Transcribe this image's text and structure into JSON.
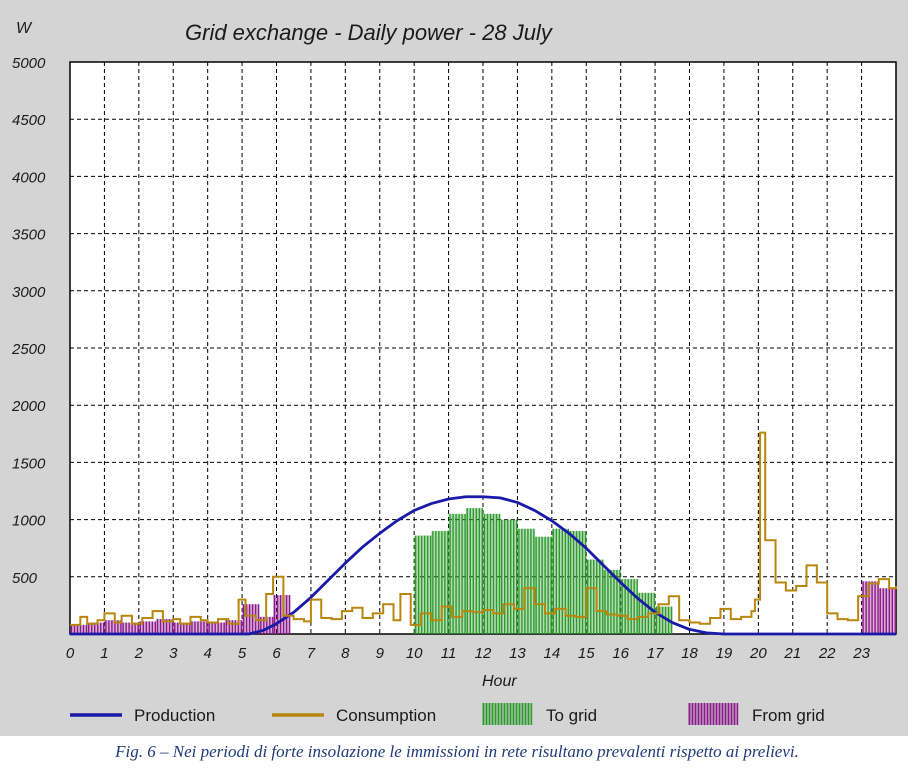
{
  "chart_data": {
    "type": "line",
    "title": "Grid exchange - Daily power - 28 July",
    "ylabel": "W",
    "xlabel": "Hour",
    "ylim": [
      0,
      5000
    ],
    "xlim": [
      0,
      24
    ],
    "y_ticks": [
      5000,
      4500,
      4000,
      3500,
      3000,
      2500,
      2000,
      1500,
      1000,
      500
    ],
    "x_ticks": [
      0,
      1,
      2,
      3,
      4,
      5,
      6,
      7,
      8,
      9,
      10,
      11,
      12,
      13,
      14,
      15,
      16,
      17,
      18,
      19,
      20,
      21,
      22,
      23
    ],
    "grid": true,
    "legend_position": "bottom",
    "colors": {
      "production": "#1a1aa8",
      "consumption": "#b8860b",
      "to_grid": "#2e9a2e",
      "from_grid": "#8b1a8b",
      "plot_bg": "#ffffff",
      "panel_bg": "#d4d4d4"
    },
    "series": [
      {
        "name": "Production",
        "style": "line",
        "x": [
          0,
          5.2,
          5.6,
          6,
          6.5,
          7,
          7.5,
          8,
          8.5,
          9,
          9.5,
          10,
          10.5,
          11,
          11.5,
          12,
          12.5,
          13,
          13.5,
          14,
          14.5,
          15,
          15.5,
          16,
          16.5,
          17,
          17.5,
          18,
          18.5,
          19,
          24
        ],
        "y": [
          0,
          0,
          30,
          90,
          190,
          320,
          470,
          620,
          760,
          880,
          990,
          1080,
          1140,
          1180,
          1200,
          1200,
          1190,
          1150,
          1080,
          990,
          880,
          750,
          600,
          450,
          310,
          190,
          100,
          40,
          10,
          0,
          0
        ]
      },
      {
        "name": "Consumption",
        "style": "step",
        "x": [
          0,
          0.3,
          0.5,
          0.8,
          1,
          1.3,
          1.5,
          1.8,
          2.1,
          2.4,
          2.7,
          3,
          3.2,
          3.5,
          3.8,
          4,
          4.3,
          4.6,
          4.9,
          5.1,
          5.4,
          5.7,
          5.9,
          6.2,
          6.5,
          6.8,
          7,
          7.3,
          7.6,
          7.9,
          8.2,
          8.5,
          8.8,
          9.1,
          9.4,
          9.6,
          9.9,
          10.2,
          10.5,
          10.8,
          11.1,
          11.4,
          11.7,
          12,
          12.3,
          12.6,
          12.9,
          13.2,
          13.5,
          13.8,
          14.1,
          14.4,
          14.7,
          15,
          15.3,
          15.6,
          15.9,
          16.2,
          16.5,
          16.8,
          17.1,
          17.4,
          17.7,
          18,
          18.3,
          18.6,
          18.9,
          19.2,
          19.5,
          19.8,
          19.9,
          20.05,
          20.2,
          20.5,
          20.8,
          21.1,
          21.4,
          21.7,
          22,
          22.3,
          22.6,
          22.9,
          23.2,
          23.5,
          23.8,
          24
        ],
        "y": [
          80,
          150,
          90,
          120,
          180,
          100,
          160,
          90,
          140,
          200,
          110,
          130,
          90,
          150,
          120,
          100,
          130,
          90,
          300,
          160,
          120,
          350,
          500,
          160,
          130,
          110,
          300,
          140,
          130,
          200,
          230,
          140,
          180,
          260,
          120,
          350,
          80,
          180,
          120,
          240,
          150,
          200,
          190,
          210,
          180,
          260,
          220,
          400,
          260,
          180,
          220,
          160,
          150,
          400,
          200,
          170,
          160,
          130,
          150,
          180,
          260,
          330,
          120,
          100,
          90,
          140,
          220,
          130,
          150,
          200,
          300,
          1760,
          820,
          450,
          380,
          420,
          600,
          450,
          180,
          130,
          120,
          330,
          440,
          480,
          400,
          420
        ]
      },
      {
        "name": "To grid",
        "style": "bar",
        "x": [
          10,
          10.5,
          11,
          11.5,
          12,
          12.5,
          13,
          13.5,
          14,
          14.5,
          15,
          15.5,
          16,
          16.5,
          17
        ],
        "y": [
          860,
          900,
          1050,
          1100,
          1050,
          1000,
          920,
          850,
          920,
          900,
          650,
          560,
          480,
          360,
          240
        ]
      },
      {
        "name": "From grid",
        "style": "bar",
        "x": [
          0,
          0.5,
          1,
          1.5,
          2,
          2.5,
          3,
          3.5,
          4,
          4.5,
          5,
          5.5,
          5.9,
          23,
          23.5
        ],
        "y": [
          80,
          100,
          120,
          100,
          110,
          130,
          100,
          110,
          100,
          120,
          260,
          150,
          340,
          460,
          400
        ]
      }
    ]
  },
  "caption": "Fig. 6 – Nei periodi di forte insolazione le immissioni in rete risultano prevalenti rispetto ai prelievi."
}
